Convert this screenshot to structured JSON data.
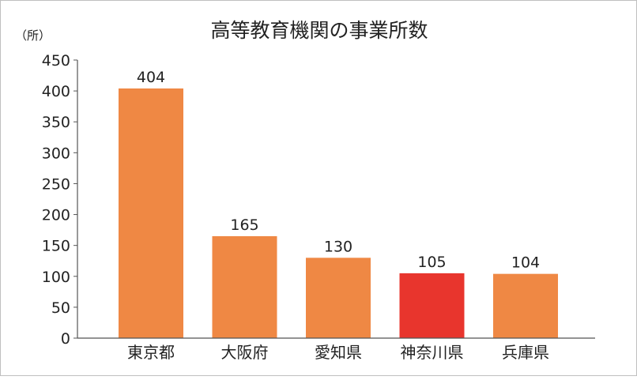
{
  "chart_data": {
    "type": "bar",
    "title": "高等教育機関の事業所数",
    "unit_label": "（所）",
    "categories": [
      "東京都",
      "大阪府",
      "愛知県",
      "神奈川県",
      "兵庫県"
    ],
    "values": [
      404,
      165,
      130,
      105,
      104
    ],
    "data_labels": [
      "404",
      "165",
      "130",
      "105",
      "104"
    ],
    "ylim": [
      0,
      450
    ],
    "yticks": [
      "0",
      "50",
      "100",
      "150",
      "200",
      "250",
      "300",
      "350",
      "400",
      "450"
    ],
    "xlabel": "",
    "ylabel": "",
    "grid": false,
    "legend": "none",
    "colors": {
      "bar": "#ef8844",
      "highlight": "#e8352d",
      "axis": "#555555",
      "text": "#222222"
    },
    "highlight_index": 3
  }
}
